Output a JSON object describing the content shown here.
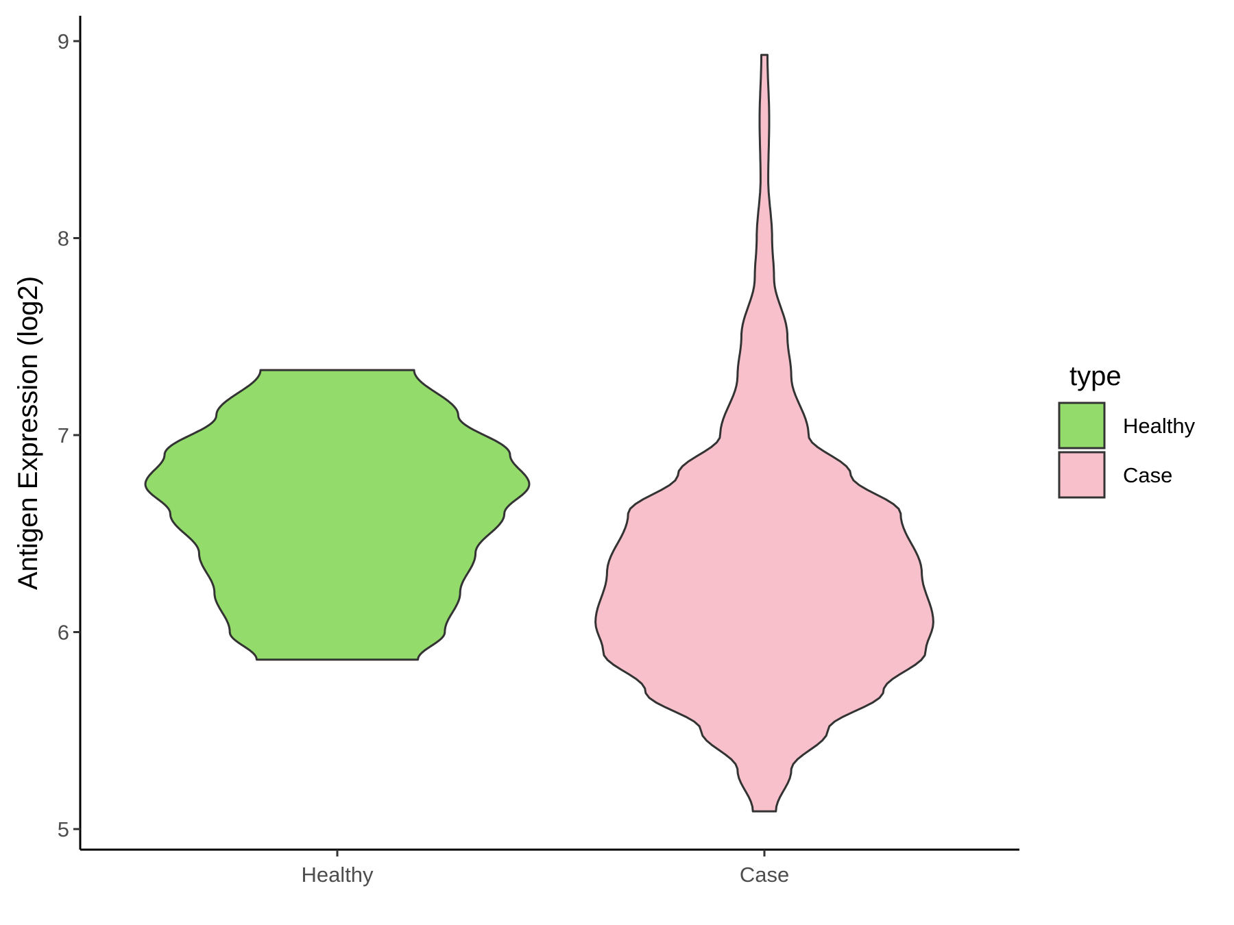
{
  "chart_data": {
    "type": "violin",
    "title": "",
    "xlabel": "",
    "ylabel": "Antigen Expression (log2)",
    "categories": [
      "Healthy",
      "Case"
    ],
    "ylim": [
      4.9,
      9.12
    ],
    "yticks": [
      5,
      6,
      7,
      8,
      9
    ],
    "grid": false,
    "legend": {
      "title": "type",
      "placement": "right",
      "entries": [
        {
          "label": "Healthy",
          "color": "#93DC6B"
        },
        {
          "label": "Case",
          "color": "#F7C0CB"
        }
      ]
    },
    "series": [
      {
        "name": "Healthy",
        "color": "#93DC6B",
        "min": 5.86,
        "max": 7.33,
        "profile": [
          [
            5.86,
            0.42
          ],
          [
            6.0,
            0.56
          ],
          [
            6.2,
            0.64
          ],
          [
            6.4,
            0.72
          ],
          [
            6.6,
            0.87
          ],
          [
            6.75,
            1.0
          ],
          [
            6.9,
            0.9
          ],
          [
            7.1,
            0.63
          ],
          [
            7.33,
            0.4
          ]
        ]
      },
      {
        "name": "Case",
        "color": "#F7C0CB",
        "min": 5.09,
        "max": 8.93,
        "profile": [
          [
            5.09,
            0.06
          ],
          [
            5.3,
            0.14
          ],
          [
            5.5,
            0.33
          ],
          [
            5.7,
            0.62
          ],
          [
            5.9,
            0.84
          ],
          [
            6.05,
            0.88
          ],
          [
            6.3,
            0.82
          ],
          [
            6.6,
            0.71
          ],
          [
            6.8,
            0.45
          ],
          [
            7.0,
            0.23
          ],
          [
            7.3,
            0.14
          ],
          [
            7.5,
            0.12
          ],
          [
            7.8,
            0.05
          ],
          [
            8.0,
            0.04
          ],
          [
            8.3,
            0.02
          ],
          [
            8.6,
            0.025
          ],
          [
            8.93,
            0.016
          ]
        ]
      }
    ]
  }
}
